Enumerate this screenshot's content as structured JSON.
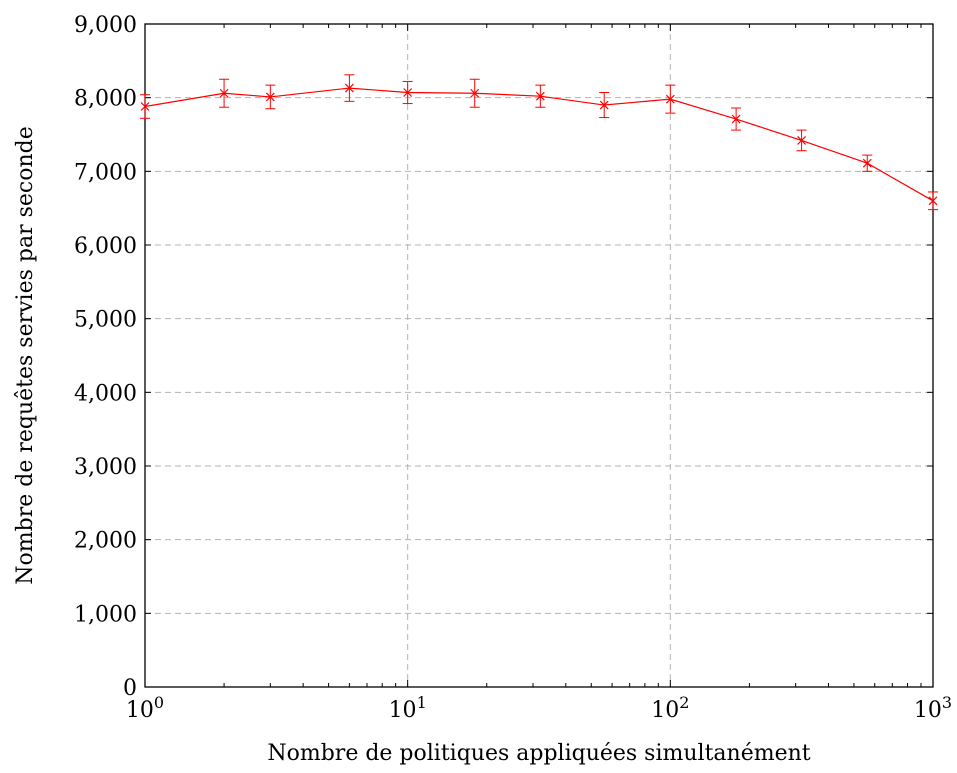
{
  "chart_data": {
    "type": "line",
    "title": "",
    "xlabel": "Nombre de politiques appliquées simultanément",
    "ylabel": "Nombre de requêtes servies par seconde",
    "x_scale": "log",
    "xlim": [
      1,
      1000
    ],
    "ylim": [
      0,
      9000
    ],
    "grid": true,
    "x_ticks": [
      {
        "value": 1,
        "base": "10",
        "exp": "0"
      },
      {
        "value": 10,
        "base": "10",
        "exp": "1"
      },
      {
        "value": 100,
        "base": "10",
        "exp": "2"
      },
      {
        "value": 1000,
        "base": "10",
        "exp": "3"
      }
    ],
    "y_ticks": [
      {
        "value": 0,
        "label": "0"
      },
      {
        "value": 1000,
        "label": "1,000"
      },
      {
        "value": 2000,
        "label": "2,000"
      },
      {
        "value": 3000,
        "label": "3,000"
      },
      {
        "value": 4000,
        "label": "4,000"
      },
      {
        "value": 5000,
        "label": "5,000"
      },
      {
        "value": 6000,
        "label": "6,000"
      },
      {
        "value": 7000,
        "label": "7,000"
      },
      {
        "value": 8000,
        "label": "8,000"
      },
      {
        "value": 9000,
        "label": "9,000"
      }
    ],
    "series": [
      {
        "color": "#ff0000",
        "marker": "x",
        "points": [
          {
            "x": 1,
            "y": 7880,
            "err": 160
          },
          {
            "x": 2,
            "y": 8060,
            "err": 190
          },
          {
            "x": 3,
            "y": 8010,
            "err": 160
          },
          {
            "x": 6,
            "y": 8130,
            "err": 180
          },
          {
            "x": 10,
            "y": 8070,
            "err": 150
          },
          {
            "x": 18,
            "y": 8060,
            "err": 190
          },
          {
            "x": 32,
            "y": 8020,
            "err": 150
          },
          {
            "x": 56,
            "y": 7900,
            "err": 170
          },
          {
            "x": 100,
            "y": 7980,
            "err": 190
          },
          {
            "x": 178,
            "y": 7710,
            "err": 150
          },
          {
            "x": 316,
            "y": 7420,
            "err": 140
          },
          {
            "x": 562,
            "y": 7110,
            "err": 110
          },
          {
            "x": 1000,
            "y": 6600,
            "err": 120
          }
        ]
      }
    ]
  }
}
